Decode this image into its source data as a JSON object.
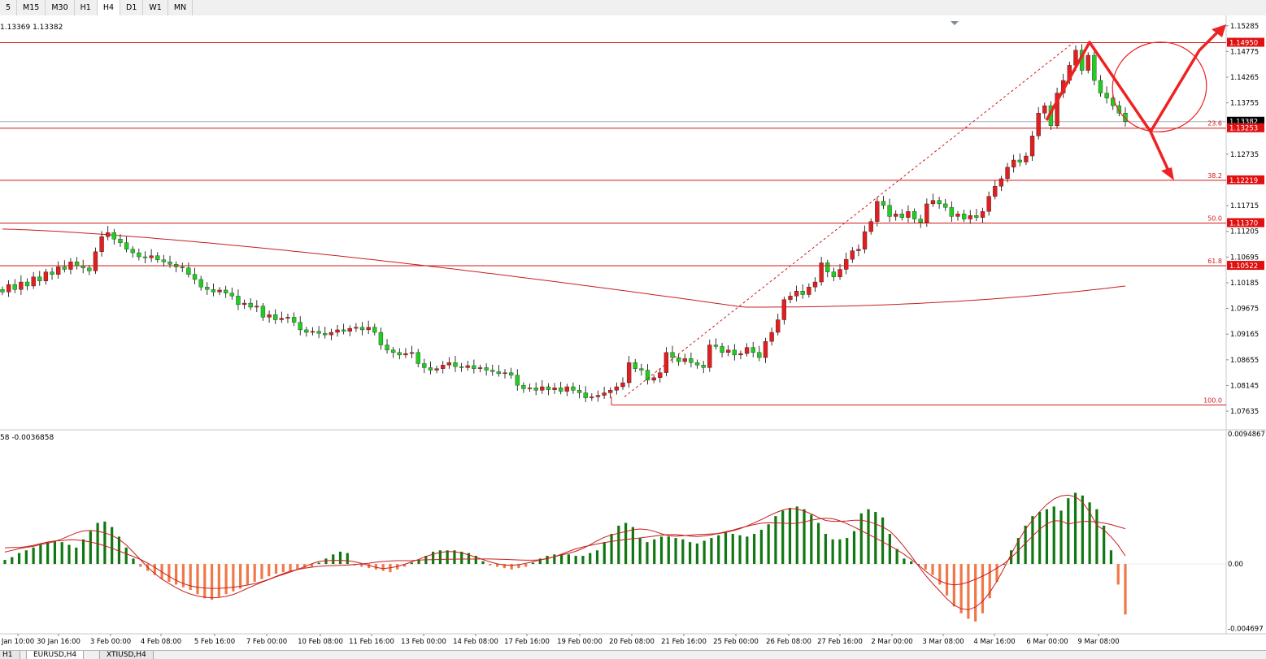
{
  "toolbar": {
    "timeframes": [
      "5",
      "M15",
      "M30",
      "H1",
      "H4",
      "D1",
      "W1",
      "MN"
    ]
  },
  "info_line": "1.13369 1.13382",
  "chart_data": [
    {
      "type": "candlestick",
      "instrument": "EURUSD,H4",
      "ylim": [
        1.0741,
        1.1541
      ],
      "price_ticks": [
        "1.15285",
        "1.14775",
        "1.14265",
        "1.13755",
        "1.12735",
        "1.11715",
        "1.11205",
        "1.10695",
        "1.10185",
        "1.09675",
        "1.09165",
        "1.08655",
        "1.08145",
        "1.07635"
      ],
      "current_price": "1.13382",
      "x_labels": [
        "Jan 10:00",
        "30 Jan 16:00",
        "3 Feb 00:00",
        "4 Feb 08:00",
        "5 Feb 16:00",
        "7 Feb 00:00",
        "10 Feb 08:00",
        "11 Feb 16:00",
        "13 Feb 00:00",
        "14 Feb 08:00",
        "17 Feb 16:00",
        "19 Feb 00:00",
        "20 Feb 08:00",
        "21 Feb 16:00",
        "25 Feb 00:00",
        "26 Feb 08:00",
        "27 Feb 16:00",
        "2 Mar 00:00",
        "3 Mar 08:00",
        "4 Mar 16:00",
        "6 Mar 00:00",
        "9 Mar 08:00"
      ],
      "closes": [
        1.1,
        1.1015,
        1.1005,
        1.102,
        1.1012,
        1.103,
        1.1022,
        1.104,
        1.1035,
        1.105,
        1.1045,
        1.106,
        1.1052,
        1.1048,
        1.1042,
        1.108,
        1.111,
        1.1118,
        1.1105,
        1.1098,
        1.1085,
        1.1078,
        1.107,
        1.1068,
        1.1072,
        1.1064,
        1.106,
        1.1055,
        1.105,
        1.1048,
        1.1035,
        1.1025,
        1.101,
        1.1005,
        1.1,
        1.1004,
        1.0998,
        1.0992,
        1.0975,
        1.0978,
        1.097,
        1.0972,
        1.095,
        1.0955,
        1.0945,
        1.0948,
        1.095,
        1.094,
        1.0925,
        1.092,
        1.0922,
        1.0918,
        1.0915,
        1.092,
        1.0925,
        1.0922,
        1.0928,
        1.093,
        1.0925,
        1.093,
        1.092,
        1.0895,
        1.0885,
        1.088,
        1.0875,
        1.0878,
        1.088,
        1.0858,
        1.085,
        1.0845,
        1.0848,
        1.0855,
        1.086,
        1.0852,
        1.085,
        1.0854,
        1.0848,
        1.085,
        1.0845,
        1.0842,
        1.0838,
        1.084,
        1.0835,
        1.0815,
        1.0808,
        1.081,
        1.0805,
        1.0812,
        1.0806,
        1.081,
        1.0803,
        1.0812,
        1.0805,
        1.08,
        1.079,
        1.0792,
        1.0795,
        1.08,
        1.0805,
        1.0812,
        1.082,
        1.086,
        1.0848,
        1.0845,
        1.0825,
        1.083,
        1.084,
        1.088,
        1.087,
        1.0862,
        1.0868,
        1.086,
        1.0855,
        1.085,
        1.0895,
        1.0892,
        1.088,
        1.0885,
        1.0875,
        1.0878,
        1.089,
        1.088,
        1.087,
        1.0902,
        1.092,
        1.0945,
        1.0985,
        1.0992,
        1.1002,
        1.0995,
        1.101,
        1.102,
        1.1058,
        1.104,
        1.103,
        1.1045,
        1.1065,
        1.1082,
        1.1085,
        1.112,
        1.114,
        1.118,
        1.1172,
        1.115,
        1.1155,
        1.1148,
        1.116,
        1.1145,
        1.1138,
        1.1175,
        1.1182,
        1.1175,
        1.1168,
        1.115,
        1.1155,
        1.1145,
        1.1152,
        1.1148,
        1.116,
        1.119,
        1.121,
        1.1225,
        1.1248,
        1.1262,
        1.1258,
        1.127,
        1.131,
        1.1355,
        1.137,
        1.133,
        1.1395,
        1.142,
        1.145,
        1.148,
        1.144,
        1.147,
        1.142,
        1.1395,
        1.1385,
        1.137,
        1.1355,
        1.13382
      ],
      "fib_levels": [
        {
          "label": "23.6",
          "price": "1.13253"
        },
        {
          "label": "38.2",
          "price": "1.12219"
        },
        {
          "label": "50.0",
          "price": "1.11370"
        },
        {
          "label": "61.8",
          "price": "1.10522"
        },
        {
          "label": "100.0",
          "price": ""
        }
      ],
      "high_level": "1.14950"
    },
    {
      "type": "histogram",
      "header": "58 -0.0036858",
      "ylim": [
        -0.0048,
        0.0095
      ],
      "tick_labels": [
        "0.0094867",
        "0.00",
        "-0.004697"
      ],
      "values": [
        0.0003,
        0.0005,
        0.0008,
        0.001,
        0.0012,
        0.0014,
        0.0016,
        0.0017,
        0.0016,
        0.0014,
        0.0012,
        0.0018,
        0.0024,
        0.003,
        0.0031,
        0.0027,
        0.002,
        0.0012,
        0.0004,
        -0.0002,
        -0.0005,
        -0.0008,
        -0.0011,
        -0.0013,
        -0.0015,
        -0.0017,
        -0.0019,
        -0.0022,
        -0.0025,
        -0.0026,
        -0.0024,
        -0.0022,
        -0.002,
        -0.0018,
        -0.0015,
        -0.0013,
        -0.0011,
        -0.0009,
        -0.0007,
        -0.0006,
        -0.0005,
        -0.0004,
        -0.0003,
        -0.0002,
        0.0001,
        0.0004,
        0.0007,
        0.0009,
        0.0008,
        -0.0001,
        -0.0002,
        -0.0003,
        -0.0004,
        -0.0005,
        -0.0006,
        -0.0004,
        -0.0002,
        0.0001,
        0.0003,
        0.0006,
        0.0009,
        0.001,
        0.001,
        0.001,
        0.0009,
        0.0008,
        0.0006,
        0.0002,
        -0.0001,
        -0.0002,
        -0.0003,
        -0.0004,
        -0.0003,
        -0.0002,
        0.0001,
        0.0004,
        0.0006,
        0.0007,
        0.0007,
        0.0007,
        0.0006,
        0.0006,
        0.0008,
        0.001,
        0.0016,
        0.0022,
        0.0028,
        0.003,
        0.0027,
        0.0019,
        0.0016,
        0.0018,
        0.002,
        0.002,
        0.0019,
        0.0018,
        0.0016,
        0.0015,
        0.0017,
        0.0019,
        0.0021,
        0.0023,
        0.0022,
        0.0021,
        0.002,
        0.0022,
        0.0025,
        0.0029,
        0.0035,
        0.0039,
        0.0041,
        0.0042,
        0.004,
        0.0036,
        0.003,
        0.0022,
        0.0018,
        0.0018,
        0.0019,
        0.0024,
        0.0037,
        0.004,
        0.0038,
        0.0034,
        0.0022,
        0.0011,
        0.0004,
        0.0002,
        0.0,
        -0.0004,
        -0.0008,
        -0.0015,
        -0.0023,
        -0.0031,
        -0.0036,
        -0.004,
        -0.0042,
        -0.0036,
        -0.0025,
        -0.0013,
        0.0,
        0.001,
        0.0019,
        0.0028,
        0.0035,
        0.0038,
        0.004,
        0.0042,
        0.0039,
        0.0048,
        0.0052,
        0.005,
        0.0045,
        0.004,
        0.0028,
        0.001,
        -0.0015,
        -0.0036858
      ]
    }
  ],
  "tabs": {
    "left": "H1",
    "active": "EURUSD,H4",
    "second": "XTIUSD,H4"
  }
}
